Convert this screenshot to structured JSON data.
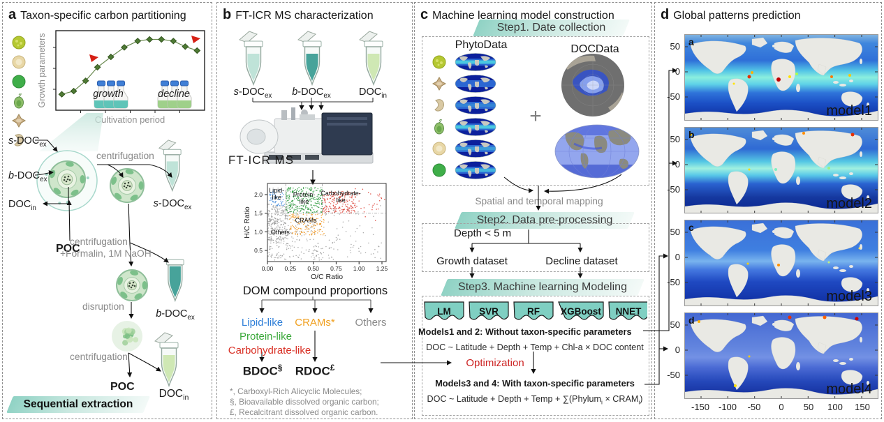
{
  "shared": {
    "s": "s",
    "b": "b",
    "doc_suffix": "-DOC",
    "doc": "DOC",
    "ex": "ex",
    "in": "in"
  },
  "panel_a": {
    "label": "a",
    "title": "Taxon-specific carbon partitioning",
    "chart": {
      "ylabel": "Growth parameters",
      "xlabel": "Cultivation period",
      "growth": "growth",
      "decline": "decline",
      "points": [
        [
          4,
          20
        ],
        [
          12,
          24
        ],
        [
          20,
          37
        ],
        [
          28,
          54
        ],
        [
          37,
          67
        ],
        [
          46,
          79
        ],
        [
          55,
          87
        ],
        [
          63,
          89
        ],
        [
          71,
          89
        ],
        [
          79,
          87
        ],
        [
          87,
          80
        ],
        [
          95,
          75
        ]
      ]
    },
    "poc": "POC",
    "steps": {
      "centrifugation": "centrifugation",
      "formalin": "+Formalin, 1M NaOH",
      "disruption": "disruption"
    },
    "banner": "Sequential extraction"
  },
  "panel_b": {
    "label": "b",
    "title": "FT-ICR MS characterization",
    "instrument": "FT-ICR MS",
    "scatter": {
      "ylabel": "H/C Ratio",
      "xlabel": "O/C Ratio",
      "yticks": [
        "0.5",
        "1.0",
        "1.5",
        "2.0"
      ],
      "xticks": [
        "0.00",
        "0.25",
        "0.50",
        "0.75",
        "1.00",
        "1.25"
      ],
      "region_labels": {
        "lipid": [
          "Lipid-",
          "like"
        ],
        "protein": [
          "Protein-",
          "like"
        ],
        "carb": [
          "Carbohydrate-",
          "like"
        ],
        "crams": "CRAMs",
        "others": "Others"
      }
    },
    "dom_title": "DOM compound proportions",
    "categories": {
      "lipid": "Lipid-like",
      "protein": "Protein-like",
      "carb": "Carbohydrate-like",
      "crams": "CRAMs*",
      "others": "Others"
    },
    "outputs": {
      "bdoc": "BDOC",
      "bdoc_mark": "§",
      "rdoc": "RDOC",
      "rdoc_mark": "£"
    },
    "footnotes": [
      "*, Carboxyl-Rich Alicyclic Molecules;",
      "§, Bioavailable dissolved organic carbon;",
      "£, Recalcitrant dissolved organic carbon."
    ]
  },
  "panel_c": {
    "label": "c",
    "title": "Machine learning model construction",
    "step1": "Step1. Date collection",
    "phytodata": "PhytoData",
    "docdata": "DOCData",
    "plus": "+",
    "mapping": "Spatial and temporal mapping",
    "step2": "Step2. Data pre-processing",
    "depth": "Depth < 5 m",
    "growth_dataset": "Growth dataset",
    "decline_dataset": "Decline dataset",
    "step3": "Step3. Machine learning Modeling",
    "models": [
      "LM",
      "SVR",
      "RF",
      "XGBoost",
      "NNET"
    ],
    "models12": "Models1 and 2: Without taxon-specific parameters",
    "formula1": "DOC ~ Latitude + Depth + Temp + Chl-a × DOC content",
    "optimization": "Optimization",
    "models34": "Models3 and 4: With taxon-specific parameters",
    "formula2": {
      "p1": "DOC ~ Latitude + Depth + Temp + ∑(Phylum",
      "s1": "i",
      "p2": " × CRAM",
      "s2": "i",
      "p3": ")"
    }
  },
  "panel_d": {
    "label": "d",
    "title": "Global patterns prediction",
    "maps": [
      {
        "letter": "a",
        "model": "model1"
      },
      {
        "letter": "b",
        "model": "model2"
      },
      {
        "letter": "c",
        "model": "model3"
      },
      {
        "letter": "d",
        "model": "model4"
      }
    ],
    "yticks": [
      "50",
      "0",
      "-50"
    ],
    "xticks": [
      "-150",
      "-100",
      "-50",
      "0",
      "50",
      "100",
      "150"
    ]
  },
  "colors": {
    "teal_accent": "#7fcfc2",
    "lipid_blue": "#2f7fd8",
    "protein_green": "#3aa83a",
    "carb_red": "#d93025",
    "crams_orange": "#f0a020",
    "others_gray": "#8a8a8a",
    "optimization_red": "#cc2222",
    "banner_teal": "#8fd2c4"
  }
}
